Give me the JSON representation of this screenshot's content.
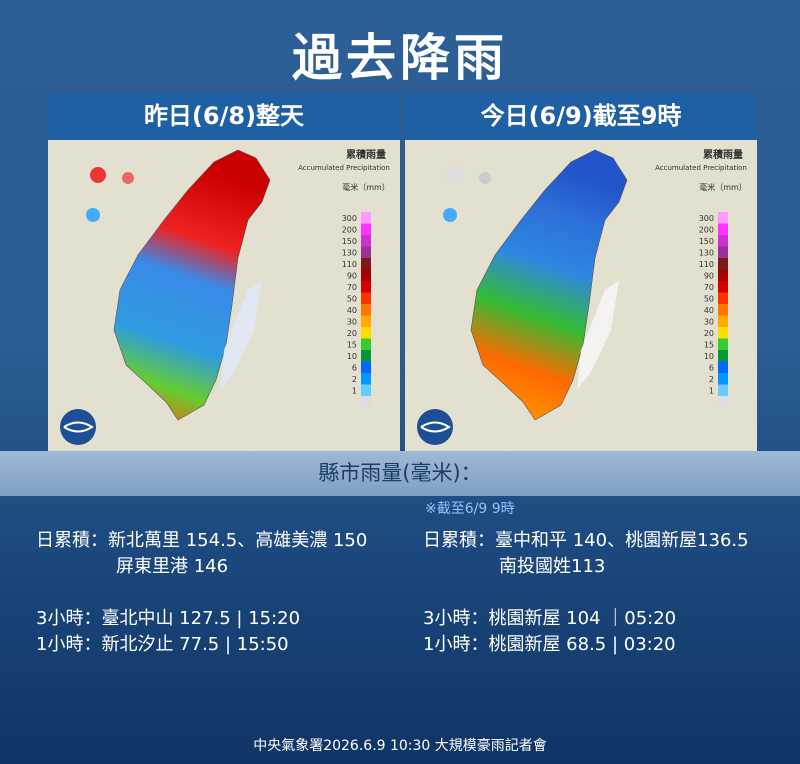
{
  "title": "過去降雨",
  "panels": [
    {
      "heading": "昨日(6/8)整天",
      "map": {
        "title": "累積雨量",
        "subtitle": "Accumulated Precipitation",
        "unit": "毫米（mm）"
      }
    },
    {
      "heading": "今日(6/9)截至9時",
      "map": {
        "title": "累積雨量",
        "subtitle": "Accumulated Precipitation",
        "unit": "毫米（mm）"
      }
    }
  ],
  "legend": [
    {
      "label": 300,
      "color": "#ff99ff"
    },
    {
      "label": 200,
      "color": "#ff33ff"
    },
    {
      "label": 150,
      "color": "#cc33cc"
    },
    {
      "label": 130,
      "color": "#993399"
    },
    {
      "label": 110,
      "color": "#7a1a1a"
    },
    {
      "label": 90,
      "color": "#a80000"
    },
    {
      "label": 70,
      "color": "#d40000"
    },
    {
      "label": 50,
      "color": "#ff3300"
    },
    {
      "label": 40,
      "color": "#ff7700"
    },
    {
      "label": 30,
      "color": "#ffaa00"
    },
    {
      "label": 20,
      "color": "#ffdd00"
    },
    {
      "label": 15,
      "color": "#33cc33"
    },
    {
      "label": 10,
      "color": "#009933"
    },
    {
      "label": 6,
      "color": "#0066ff"
    },
    {
      "label": 2,
      "color": "#0099ff"
    },
    {
      "label": 1,
      "color": "#66ccff"
    }
  ],
  "section_title": "縣市雨量(毫米)：",
  "note": "※截至6/9 9時",
  "columns": [
    {
      "lines": [
        "日累積：新北萬里 154.5、高雄美濃 150",
        "屏東里港 146",
        "3小時：臺北中山 127.5 | 15:20",
        "1小時：新北汐止 77.5 | 15:50"
      ]
    },
    {
      "lines": [
        "日累積：臺中和平 140、桃園新屋136.5",
        "南投國姓113",
        "3小時：桃園新屋 104 ｜05:20",
        "1小時：桃園新屋 68.5 | 03:20"
      ]
    }
  ],
  "footer": "中央氣象署2026.6.9 10:30 大規模豪雨記者會"
}
